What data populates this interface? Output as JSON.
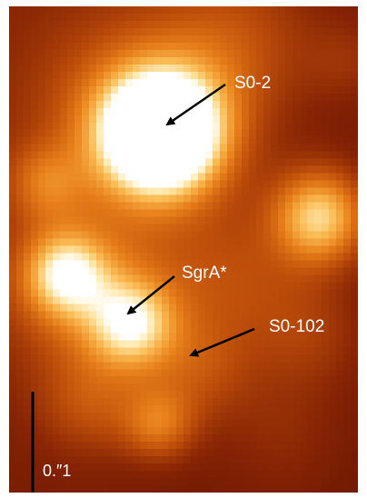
{
  "labels": {
    "s0_2": "S0-2",
    "sgr_a": "SgrA*",
    "s0_102": "S0-102",
    "scale": "0.″1"
  },
  "colors": {
    "background": "#7a1c02",
    "text": "#ffffff",
    "arrow": "#000000",
    "scale_bar": "#000000"
  }
}
